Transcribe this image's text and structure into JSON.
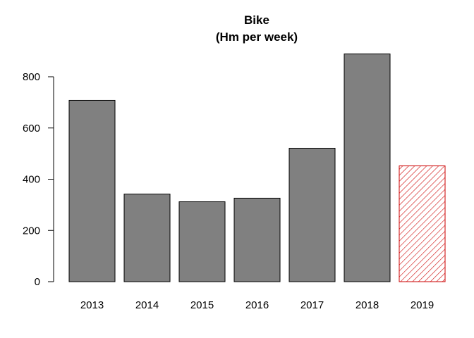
{
  "chart_data": {
    "type": "bar",
    "title": "Bike",
    "subtitle": "(Hm per week)",
    "xlabel": "",
    "ylabel": "",
    "categories": [
      "2013",
      "2014",
      "2015",
      "2016",
      "2017",
      "2018",
      "2019"
    ],
    "values": [
      708,
      342,
      312,
      326,
      521,
      889,
      452
    ],
    "ylim": [
      0,
      900
    ],
    "yticks": [
      "0",
      "200",
      "400",
      "600",
      "800"
    ],
    "grid": false,
    "legend": "none",
    "colors": {
      "bar_fill": "#808080",
      "bar_stroke": "#000000",
      "highlight_hatch": "#cc0000"
    },
    "highlight_index": 6,
    "highlight_note": "hatched"
  }
}
